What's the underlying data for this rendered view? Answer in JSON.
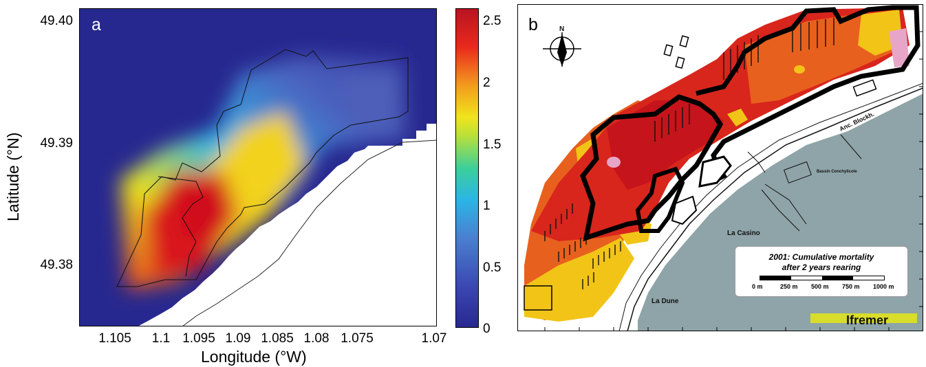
{
  "panel_a": {
    "label": "a",
    "x_axis_title": "Longitude (°W)",
    "y_axis_title": "Latitude (°N)",
    "x_ticks": [
      "1.105",
      "1.1",
      "1.095",
      "1.09",
      "1.085",
      "1.08",
      "1.075",
      "1.07"
    ],
    "y_ticks": [
      "49.40",
      "49.39",
      "49.38"
    ],
    "colorbar_ticks": [
      "2.5",
      "2",
      "1.5",
      "1",
      "0.5",
      "0"
    ],
    "colors": {
      "background": "#27288f",
      "low": "#2b2d94",
      "mid": "#3fb7e3",
      "high": "#e8e21c",
      "peak": "#d8151b",
      "land": "#ffffff"
    }
  },
  "panel_b": {
    "label": "b",
    "north": "N",
    "place_names": [
      "Anc. Blockh.",
      "Bassin Conchylicole",
      "La Casino",
      "La Dune"
    ],
    "legend_title_line1": "2001: Cumulative mortality",
    "legend_title_line2": "after 2 years rearing",
    "scale_labels": [
      "0 m",
      "250 m",
      "500 m",
      "750 m",
      "1000 m"
    ],
    "logo": "Ifremer",
    "colors": {
      "sea": "#8fa4a8",
      "dark_red": "#c5141b",
      "orange": "#e8601e",
      "yellow": "#f2c418",
      "pink": "#e7a6c8",
      "logo_bar": "#d8dd2b"
    }
  }
}
